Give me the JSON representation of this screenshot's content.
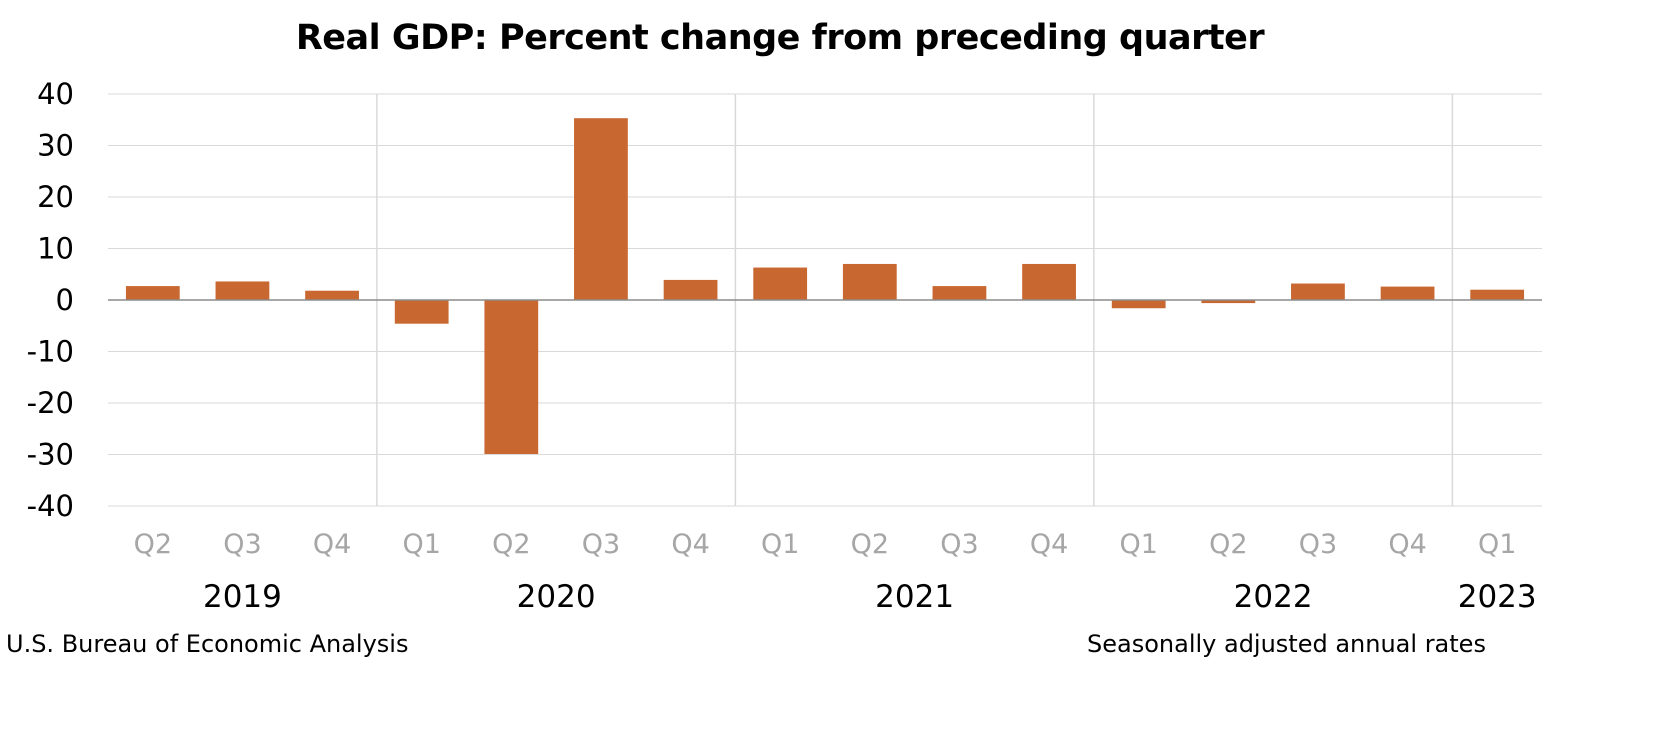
{
  "chart_data": {
    "type": "bar",
    "title": "Real GDP:  Percent change from preceding quarter",
    "categories": [
      "Q2",
      "Q3",
      "Q4",
      "Q1",
      "Q2",
      "Q3",
      "Q4",
      "Q1",
      "Q2",
      "Q3",
      "Q4",
      "Q1",
      "Q2",
      "Q3",
      "Q4",
      "Q1"
    ],
    "years": [
      {
        "label": "2019",
        "start": 0,
        "end": 2
      },
      {
        "label": "2020",
        "start": 3,
        "end": 6
      },
      {
        "label": "2021",
        "start": 7,
        "end": 10
      },
      {
        "label": "2022",
        "start": 11,
        "end": 14
      },
      {
        "label": "2023",
        "start": 15,
        "end": 15
      }
    ],
    "series": [
      {
        "values": [
          2.7,
          3.6,
          1.8,
          -4.6,
          -29.9,
          35.3,
          3.9,
          6.3,
          7.0,
          2.7,
          7.0,
          -1.6,
          -0.6,
          3.2,
          2.6,
          2.0
        ]
      }
    ],
    "ylim": [
      -40,
      40
    ],
    "yticks": [
      -40,
      -30,
      -20,
      -10,
      0,
      10,
      20,
      30,
      40
    ],
    "grid": true,
    "legend": "none",
    "bar_color": "#C8672F",
    "source": "U.S. Bureau of Economic Analysis",
    "note": "Seasonally adjusted annual rates"
  }
}
